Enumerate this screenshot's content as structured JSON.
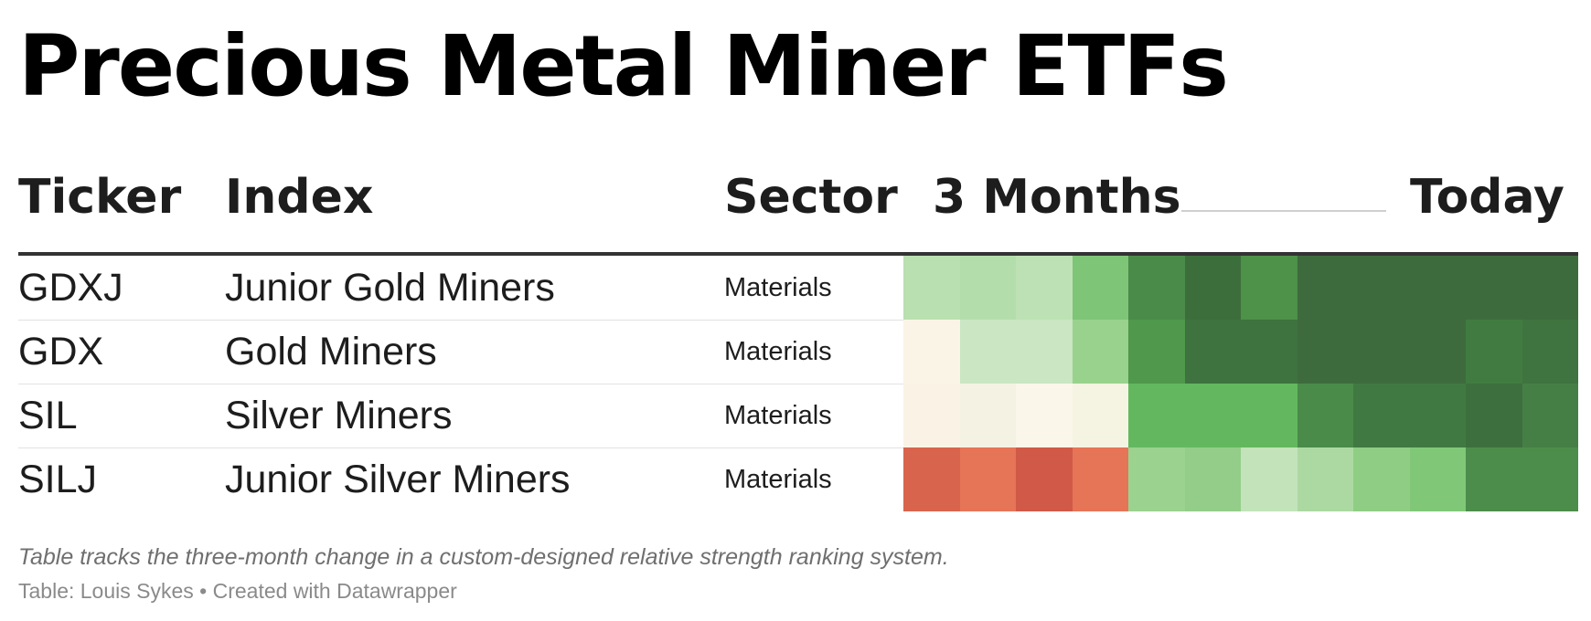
{
  "title": "Precious Metal Miner ETFs",
  "headers": {
    "ticker": "Ticker",
    "index": "Index",
    "sector": "Sector",
    "period_start": "3 Months",
    "period_end": "Today"
  },
  "chart_data": {
    "type": "heatmap",
    "title": "Precious Metal Miner ETFs",
    "columns": [
      "Ticker",
      "Index",
      "Sector",
      "3 Months",
      "Today"
    ],
    "rows": [
      {
        "ticker": "GDXJ",
        "index": "Junior Gold Miners",
        "sector": "Materials",
        "cells": [
          "#b9e0b0",
          "#b4ddac",
          "#bde1b4",
          "#7fc577",
          "#4b8b49",
          "#3c6e3c",
          "#4e9149",
          "#3e6b3e",
          "#3e6b3e",
          "#3e6b3e",
          "#3e6b3e",
          "#3e6b3e"
        ]
      },
      {
        "ticker": "GDX",
        "index": "Gold Miners",
        "sector": "Materials",
        "cells": [
          "#faf4e7",
          "#cae6c3",
          "#cae6c3",
          "#98d28d",
          "#4f984c",
          "#3e723f",
          "#3e723f",
          "#3e6b3e",
          "#3e6b3e",
          "#3e6b3e",
          "#417b41",
          "#3f733f"
        ]
      },
      {
        "ticker": "SIL",
        "index": "Silver Miners",
        "sector": "Materials",
        "cells": [
          "#faf3e5",
          "#f4f2e3",
          "#faf6ea",
          "#f5f3e2",
          "#63b85f",
          "#63b85f",
          "#63b85f",
          "#4a8b4a",
          "#417942",
          "#417942",
          "#3d6f3e",
          "#467f46"
        ]
      },
      {
        "ticker": "SILJ",
        "index": "Junior Silver Miners",
        "sector": "Materials",
        "cells": [
          "#d8644d",
          "#e67456",
          "#d05a47",
          "#e67456",
          "#9bd290",
          "#93cd89",
          "#c3e3bb",
          "#acd9a2",
          "#8fcd85",
          "#80c878",
          "#4d8d4b",
          "#4d8d4b"
        ]
      }
    ]
  },
  "notes": "Table tracks the three-month change in a custom-designed relative strength ranking system.",
  "source": "Table: Louis Sykes • Created with Datawrapper"
}
